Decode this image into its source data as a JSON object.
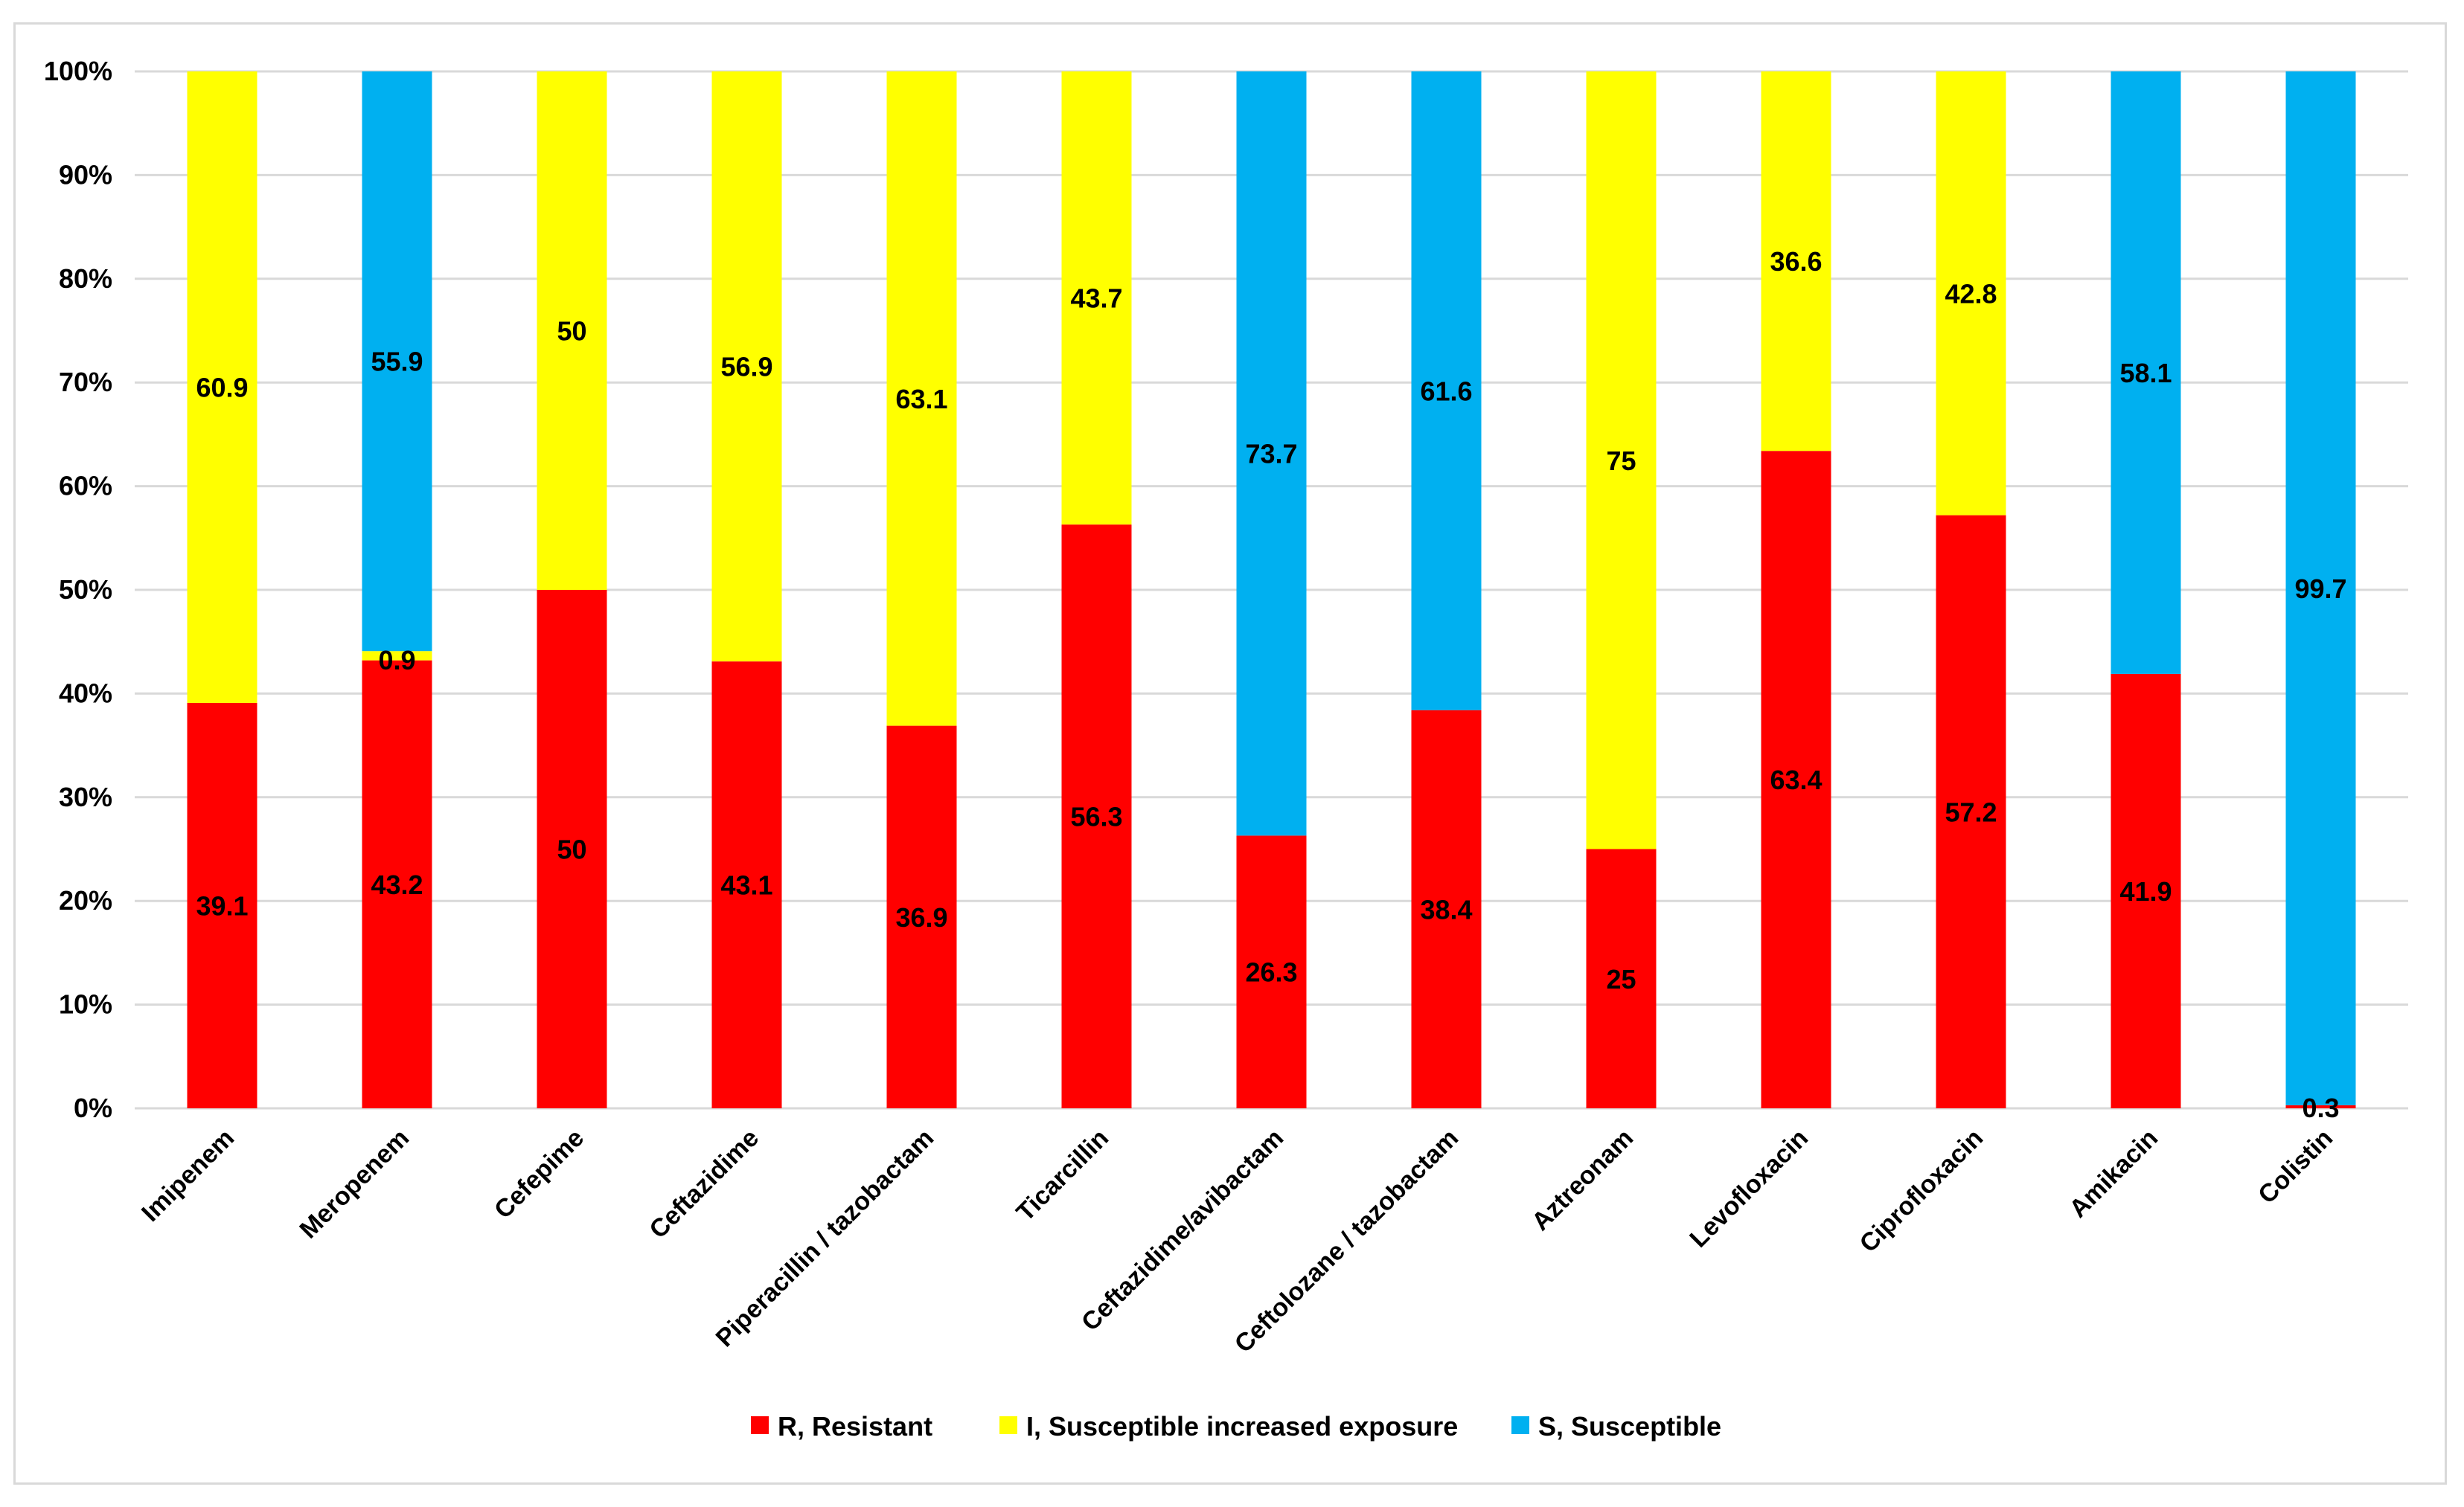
{
  "chart_data": {
    "type": "bar",
    "stacked": true,
    "percent_stacked": true,
    "categories": [
      "Imipenem",
      "Meropenem",
      "Cefepime",
      "Ceftazidime",
      "Piperacillin / tazobactam",
      "Ticarcillin",
      "Ceftazidime/avibactam",
      "Ceftolozane / tazobactam",
      "Aztreonam",
      "Levofloxacin",
      "Ciprofloxacin",
      "Amikacin",
      "Colistin"
    ],
    "series": [
      {
        "name": "R, Resistant",
        "color": "#ff0000",
        "values": [
          39.1,
          43.2,
          50,
          43.1,
          36.9,
          56.3,
          26.3,
          38.4,
          25,
          63.4,
          57.2,
          41.9,
          0.3
        ]
      },
      {
        "name": "I, Susceptible increased exposure",
        "color": "#ffff00",
        "values": [
          60.9,
          0.9,
          50,
          56.9,
          63.1,
          43.7,
          null,
          null,
          75,
          36.6,
          42.8,
          null,
          null
        ]
      },
      {
        "name": "S, Susceptible",
        "color": "#00b0f0",
        "values": [
          null,
          55.9,
          null,
          null,
          null,
          null,
          73.7,
          61.6,
          null,
          null,
          null,
          58.1,
          99.7
        ]
      }
    ],
    "y_ticks": [
      "0%",
      "10%",
      "20%",
      "30%",
      "40%",
      "50%",
      "60%",
      "70%",
      "80%",
      "90%",
      "100%"
    ],
    "ylim": [
      0,
      100
    ],
    "grid": true,
    "legend_position": "bottom"
  }
}
